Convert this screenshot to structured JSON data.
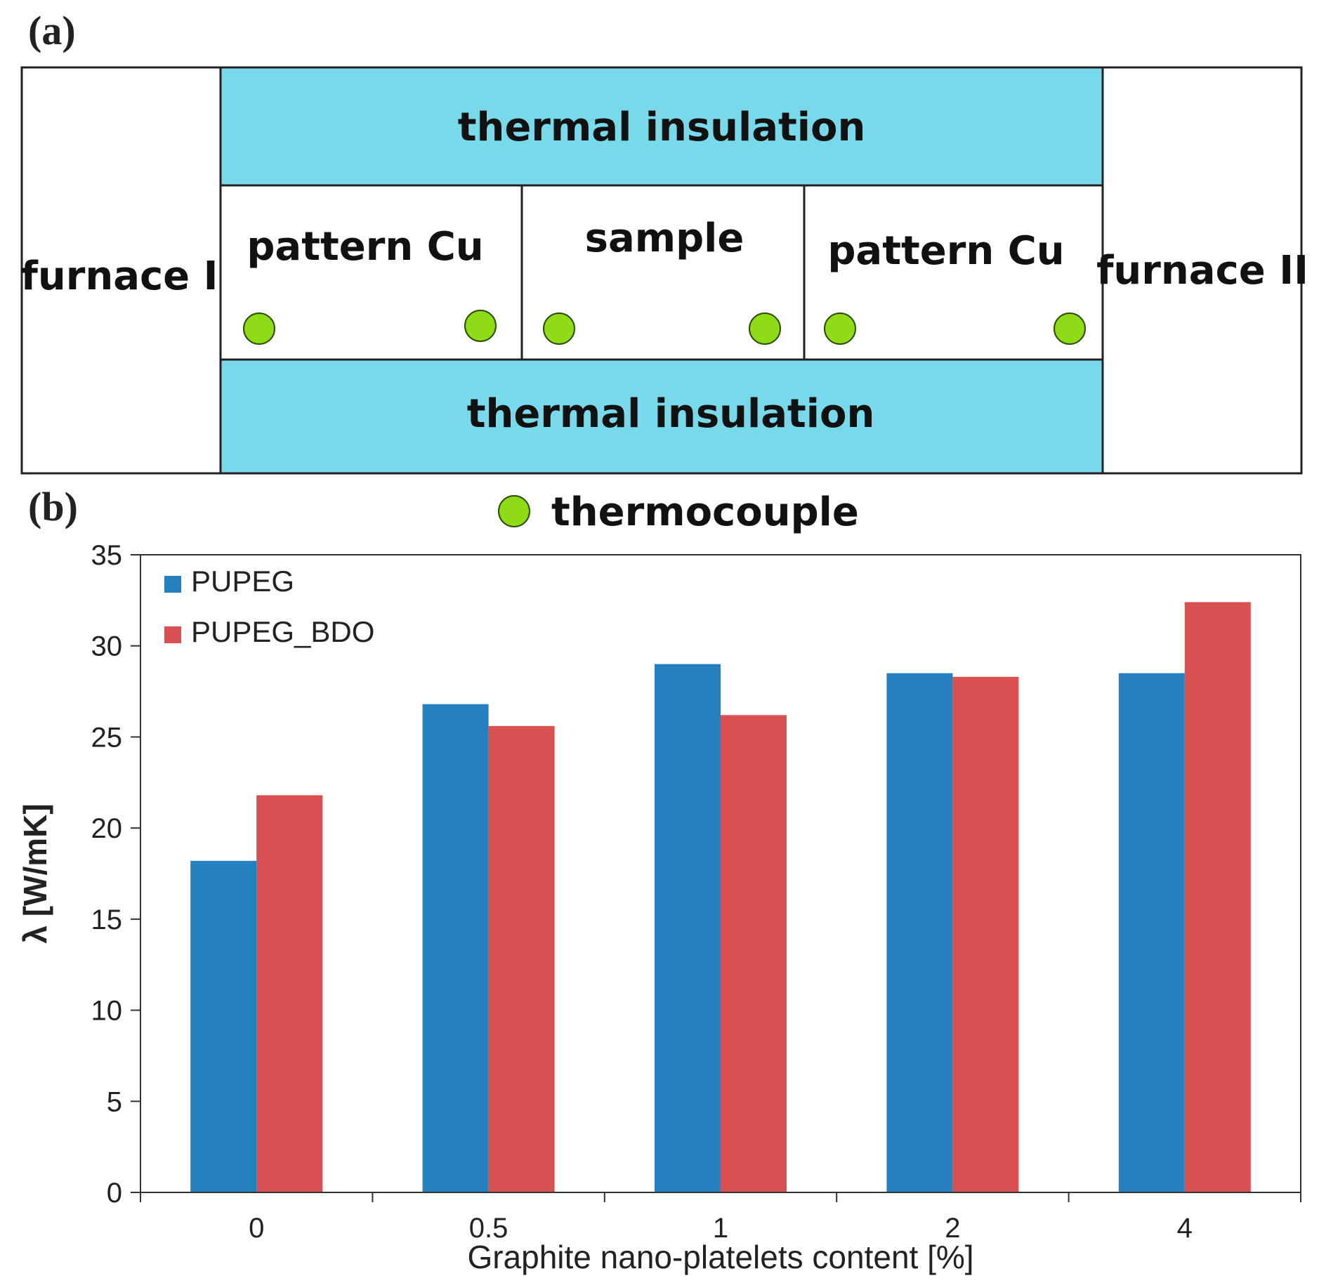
{
  "panel_a": {
    "label": "(a)",
    "furnace_left": "furnace I",
    "furnace_right": "furnace II",
    "insulation_top": "thermal insulation",
    "insulation_bottom": "thermal insulation",
    "cell_left": "pattern Cu",
    "cell_middle": "sample",
    "cell_right": "pattern Cu",
    "legend_label": "thermocouple",
    "colors": {
      "insulation": "#78d9ea",
      "thermocouple": "#8ddc16"
    }
  },
  "panel_b": {
    "label": "(b)"
  },
  "chart_data": {
    "type": "bar",
    "categories": [
      "0",
      "0.5",
      "1",
      "2",
      "4"
    ],
    "series": [
      {
        "name": "PUPEG",
        "values": [
          18.2,
          26.8,
          29.0,
          28.5,
          28.5
        ],
        "color": "#2580bf"
      },
      {
        "name": "PUPEG_BDO",
        "values": [
          21.8,
          25.6,
          26.2,
          28.3,
          32.4
        ],
        "color": "#d95050"
      }
    ],
    "xlabel": "Graphite nano-platelets content [%]",
    "ylabel": "λ [W/mK]",
    "ylim": [
      0,
      35
    ],
    "yticks": [
      "0",
      "5",
      "10",
      "15",
      "20",
      "25",
      "30",
      "35"
    ],
    "grid": false,
    "legend_position": "top-left"
  }
}
